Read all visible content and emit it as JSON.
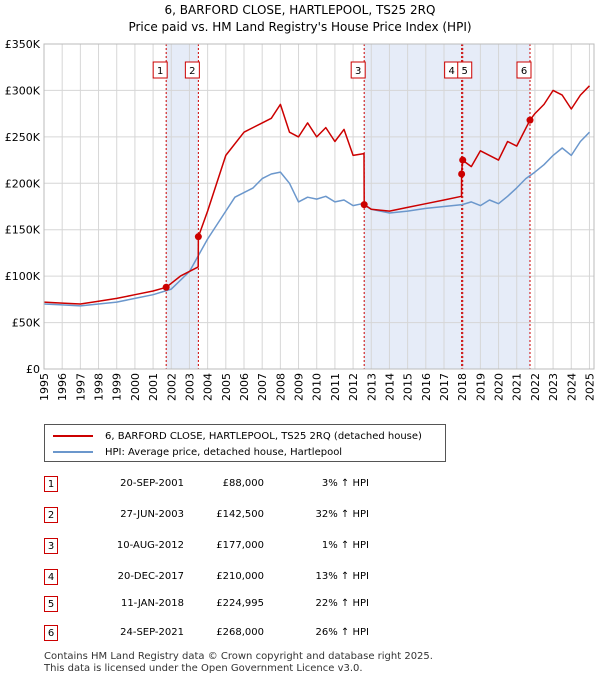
{
  "chart_data": {
    "type": "line",
    "title": "6, BARFORD CLOSE, HARTLEPOOL, TS25 2RQ",
    "subtitle": "Price paid vs. HM Land Registry's House Price Index (HPI)",
    "xlim": [
      1995,
      2025.25
    ],
    "ylim": [
      0,
      350000
    ],
    "y_ticks": [
      0,
      50000,
      100000,
      150000,
      200000,
      250000,
      300000,
      350000
    ],
    "y_tick_labels": [
      "£0",
      "£50K",
      "£100K",
      "£150K",
      "£200K",
      "£250K",
      "£300K",
      "£350K"
    ],
    "x_ticks": [
      1995,
      1996,
      1997,
      1998,
      1999,
      2000,
      2001,
      2002,
      2003,
      2004,
      2005,
      2006,
      2007,
      2008,
      2009,
      2010,
      2011,
      2012,
      2013,
      2014,
      2015,
      2016,
      2017,
      2018,
      2019,
      2020,
      2021,
      2022,
      2023,
      2024,
      2025
    ],
    "grid": true,
    "legend_position": "below",
    "colors": {
      "property": "#cc0000",
      "hpi": "#6b97cc",
      "shade": "#e6ecf8",
      "vline": "#cc0000"
    },
    "series": [
      {
        "name": "6, BARFORD CLOSE, HARTLEPOOL, TS25 2RQ (detached house)",
        "x": [
          1995.0,
          1996.0,
          1997.0,
          1998.0,
          1999.0,
          2000.0,
          2001.0,
          2001.72,
          2002.5,
          2003.48,
          2003.49,
          2004.0,
          2005.0,
          2006.0,
          2007.0,
          2007.5,
          2008.0,
          2008.5,
          2009.0,
          2009.5,
          2010.0,
          2010.5,
          2011.0,
          2011.5,
          2012.0,
          2012.6,
          2012.61,
          2013.0,
          2014.0,
          2015.0,
          2016.0,
          2017.0,
          2017.96,
          2017.97,
          2018.02,
          2018.5,
          2019.0,
          2020.0,
          2020.5,
          2021.0,
          2021.73,
          2022.0,
          2022.5,
          2023.0,
          2023.5,
          2024.0,
          2024.5,
          2025.0
        ],
        "values": [
          72000,
          71000,
          70000,
          73000,
          76000,
          80000,
          84000,
          88000,
          100000,
          110000,
          142500,
          170000,
          230000,
          255000,
          265000,
          270000,
          285000,
          255000,
          250000,
          265000,
          250000,
          260000,
          245000,
          258000,
          230000,
          232000,
          177000,
          172000,
          170000,
          174000,
          178000,
          182000,
          186000,
          210000,
          224995,
          218000,
          235000,
          225000,
          245000,
          240000,
          268000,
          275000,
          285000,
          300000,
          295000,
          280000,
          295000,
          305000
        ]
      },
      {
        "name": "HPI: Average price, detached house, Hartlepool",
        "x": [
          1995.0,
          1996.0,
          1997.0,
          1998.0,
          1999.0,
          2000.0,
          2001.0,
          2002.0,
          2003.0,
          2004.0,
          2005.0,
          2005.5,
          2006.0,
          2006.5,
          2007.0,
          2007.5,
          2008.0,
          2008.5,
          2009.0,
          2009.5,
          2010.0,
          2010.5,
          2011.0,
          2011.5,
          2012.0,
          2012.5,
          2013.0,
          2014.0,
          2015.0,
          2016.0,
          2017.0,
          2018.0,
          2018.5,
          2019.0,
          2019.5,
          2020.0,
          2020.5,
          2021.0,
          2021.5,
          2022.0,
          2022.5,
          2023.0,
          2023.5,
          2024.0,
          2024.5,
          2025.0
        ],
        "values": [
          70000,
          69000,
          68000,
          70000,
          72000,
          76000,
          80000,
          86000,
          105000,
          140000,
          170000,
          185000,
          190000,
          195000,
          205000,
          210000,
          212000,
          200000,
          180000,
          185000,
          183000,
          186000,
          180000,
          182000,
          176000,
          178000,
          172000,
          168000,
          170000,
          173000,
          175000,
          177000,
          180000,
          176000,
          182000,
          178000,
          186000,
          195000,
          205000,
          212000,
          220000,
          230000,
          238000,
          230000,
          245000,
          255000
        ]
      }
    ],
    "sales": [
      {
        "n": "1",
        "x": 2001.72,
        "value": 88000
      },
      {
        "n": "2",
        "x": 2003.49,
        "value": 142500
      },
      {
        "n": "3",
        "x": 2012.61,
        "value": 177000
      },
      {
        "n": "4",
        "x": 2017.97,
        "value": 210000
      },
      {
        "n": "5",
        "x": 2018.03,
        "value": 224995
      },
      {
        "n": "6",
        "x": 2021.73,
        "value": 268000
      }
    ],
    "shaded_spans": [
      [
        2001.72,
        2003.49
      ],
      [
        2012.61,
        2017.97
      ],
      [
        2018.03,
        2021.73
      ]
    ]
  },
  "legend": {
    "property_label": "6, BARFORD CLOSE, HARTLEPOOL, TS25 2RQ (detached house)",
    "hpi_label": "HPI: Average price, detached house, Hartlepool"
  },
  "table": [
    {
      "n": "1",
      "date": "20-SEP-2001",
      "price": "£88,000",
      "hpi": "3% ↑ HPI"
    },
    {
      "n": "2",
      "date": "27-JUN-2003",
      "price": "£142,500",
      "hpi": "32% ↑ HPI"
    },
    {
      "n": "3",
      "date": "10-AUG-2012",
      "price": "£177,000",
      "hpi": "1% ↑ HPI"
    },
    {
      "n": "4",
      "date": "20-DEC-2017",
      "price": "£210,000",
      "hpi": "13% ↑ HPI"
    },
    {
      "n": "5",
      "date": "11-JAN-2018",
      "price": "£224,995",
      "hpi": "22% ↑ HPI"
    },
    {
      "n": "6",
      "date": "24-SEP-2021",
      "price": "£268,000",
      "hpi": "26% ↑ HPI"
    }
  ],
  "footer": {
    "line1": "Contains HM Land Registry data © Crown copyright and database right 2025.",
    "line2": "This data is licensed under the Open Government Licence v3.0."
  }
}
